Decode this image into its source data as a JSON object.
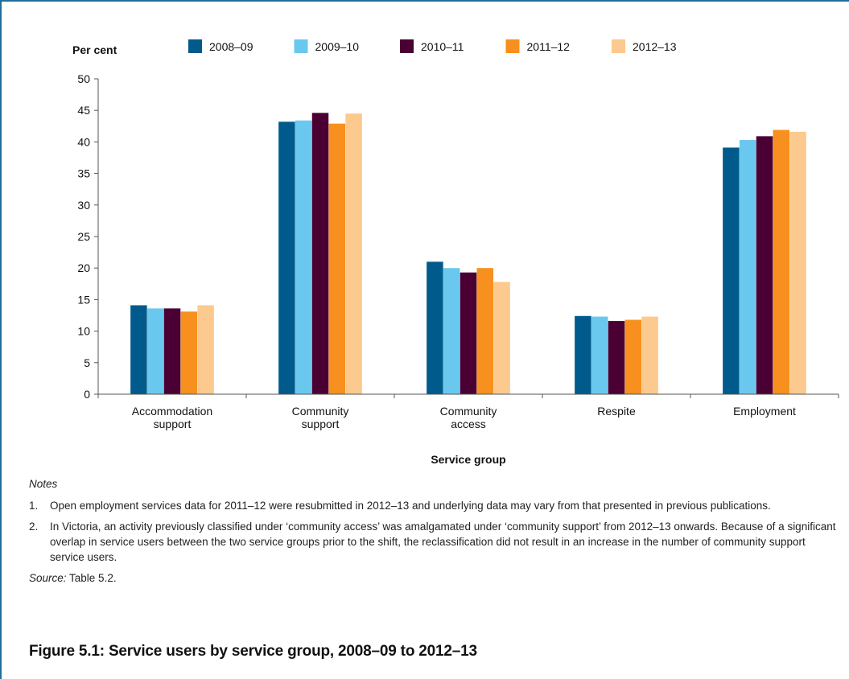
{
  "chart_data": {
    "type": "bar",
    "ylabel": "Per cent",
    "xlabel": "Service group",
    "ylim": [
      0,
      50
    ],
    "yticks": [
      0,
      5,
      10,
      15,
      20,
      25,
      30,
      35,
      40,
      45,
      50
    ],
    "categories": [
      [
        "Accommodation",
        "support"
      ],
      [
        "Community",
        "support"
      ],
      [
        "Community",
        "access"
      ],
      [
        "Respite"
      ],
      [
        "Employment"
      ]
    ],
    "series": [
      {
        "name": "2008–09",
        "color": "#005a8c",
        "values": [
          14.1,
          43.2,
          21.0,
          12.4,
          39.1
        ]
      },
      {
        "name": "2009–10",
        "color": "#6ac8ef",
        "values": [
          13.6,
          43.4,
          20.0,
          12.3,
          40.3
        ]
      },
      {
        "name": "2010–11",
        "color": "#4b0034",
        "values": [
          13.6,
          44.6,
          19.3,
          11.6,
          40.9
        ]
      },
      {
        "name": "2011–12",
        "color": "#f7901e",
        "values": [
          13.1,
          42.9,
          20.0,
          11.8,
          41.9
        ]
      },
      {
        "name": "2012–13",
        "color": "#fcc98e",
        "values": [
          14.1,
          44.5,
          17.8,
          12.3,
          41.6
        ]
      }
    ],
    "legend_position": "top"
  },
  "notes": {
    "heading": "Notes",
    "items": [
      {
        "num": "1.",
        "text": "Open employment services data for 2011–12 were resubmitted in 2012–13 and underlying data may vary from that presented in previous publications."
      },
      {
        "num": "2.",
        "text": "In Victoria, an activity previously classified under ‘community access’ was amalgamated under ‘community support’ from 2012–13 onwards. Because of a significant overlap in service users between the two service groups prior to the shift, the reclassification did not result in an increase in the number of community support service users."
      }
    ],
    "source_label": "Source:",
    "source_text": " Table 5.2."
  },
  "figure": {
    "title": "Figure 5.1: Service users by service group, 2008–09 to 2012–13"
  }
}
